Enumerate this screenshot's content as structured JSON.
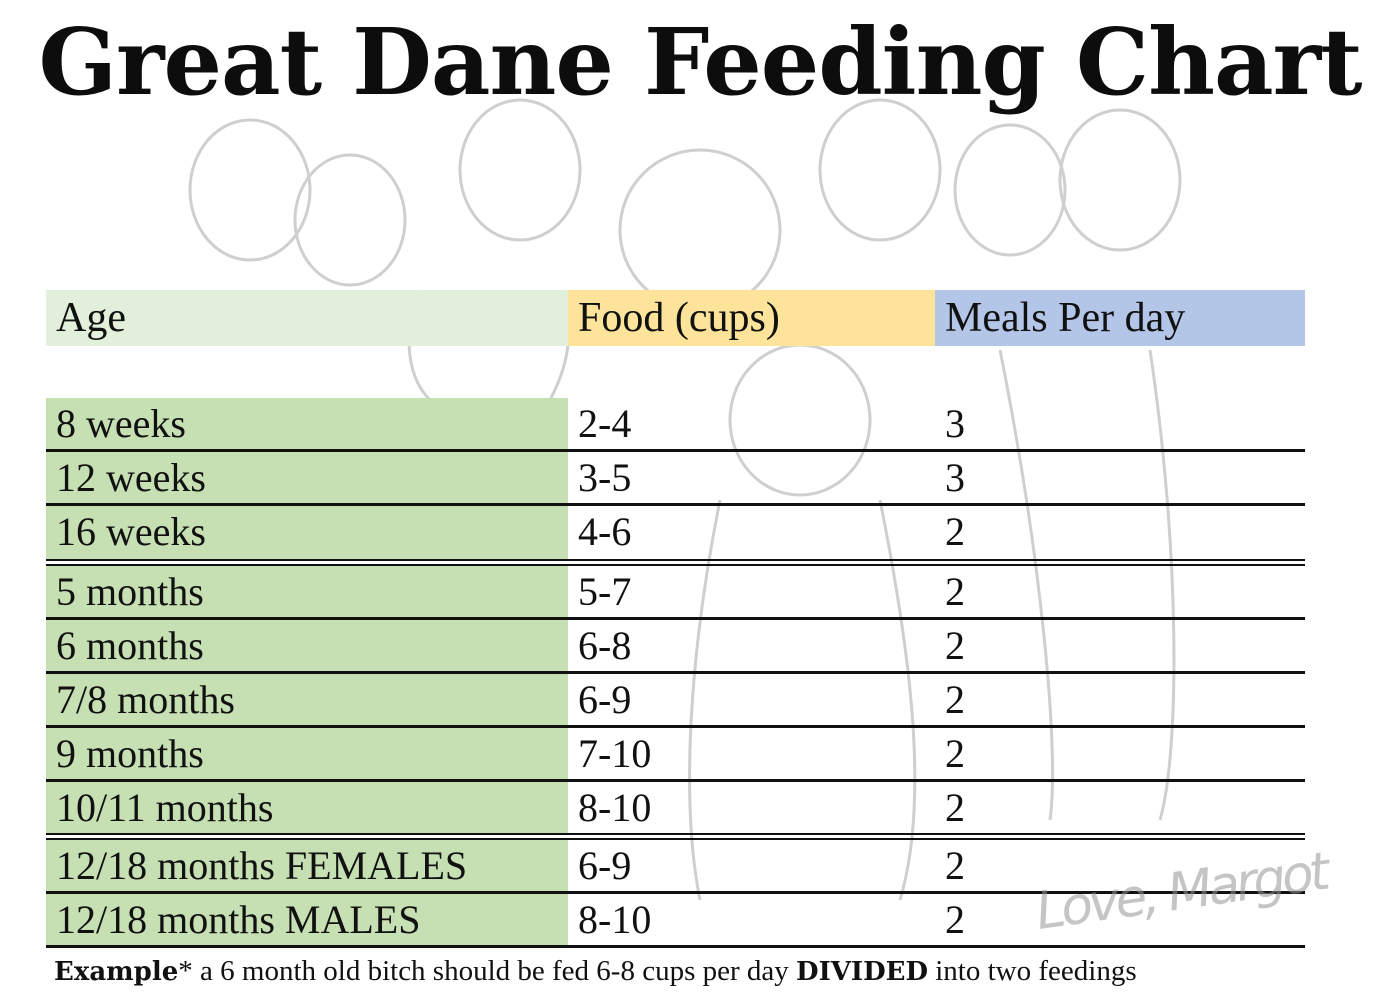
{
  "title": "Great Dane Feeding Chart",
  "columns": [
    "Age",
    "Food (cups)",
    "Meals Per day"
  ],
  "colors": {
    "age_header": "#e2efda",
    "food_header": "#fde49a",
    "meals_header": "#b4c6e7",
    "age_cells": "#c6e0b4"
  },
  "rows": [
    {
      "age": "8 weeks",
      "food": "2-4",
      "meals": "3"
    },
    {
      "age": "12 weeks",
      "food": "3-5",
      "meals": "3"
    },
    {
      "age": "16 weeks",
      "food": "4-6",
      "meals": "2"
    },
    {
      "age": "5 months",
      "food": "5-7",
      "meals": "2"
    },
    {
      "age": "6 months",
      "food": "6-8",
      "meals": "2"
    },
    {
      "age": "7/8 months",
      "food": "6-9",
      "meals": "2"
    },
    {
      "age": "9 months",
      "food": "7-10",
      "meals": "2"
    },
    {
      "age": "10/11 months",
      "food": "8-10",
      "meals": "2"
    },
    {
      "age": "12/18 months FEMALES",
      "food": "6-9",
      "meals": "2"
    },
    {
      "age": "12/18 months MALES",
      "food": "8-10",
      "meals": "2"
    }
  ],
  "note": {
    "bold1": "Example",
    "text1": "* a 6 month old bitch should be fed 6-8 cups per day ",
    "bold2": "DIVIDED",
    "text2": " into two feedings"
  },
  "signature": "Love, Margot"
}
